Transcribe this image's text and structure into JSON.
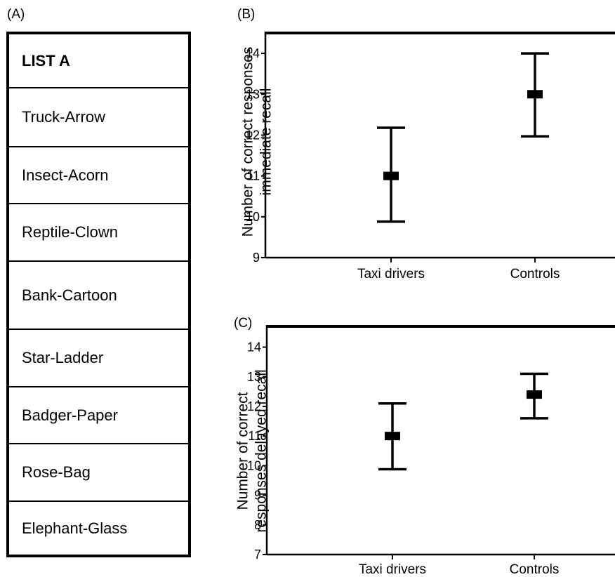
{
  "panels": {
    "a_label": "(A)",
    "b_label": "(B)",
    "c_label": "(C)"
  },
  "list": {
    "title": "LIST A",
    "items": [
      "Truck-Arrow",
      "Insect-Acorn",
      "Reptile-Clown",
      "Bank-Cartoon",
      "Star-Ladder",
      "Badger-Paper",
      "Rose-Bag",
      "Elephant-Glass"
    ]
  },
  "chart_data": [
    {
      "type": "scatter",
      "panel": "(B)",
      "categories": [
        "Taxi drivers",
        "Controls"
      ],
      "series": [
        {
          "mean": [
            11.0,
            13.0
          ],
          "lower": [
            9.88,
            11.97
          ],
          "upper": [
            12.18,
            14.0
          ]
        }
      ],
      "ylabel": [
        "Number of correct responses",
        "immediate recall"
      ],
      "ylim": [
        9,
        14.5
      ],
      "yticks": [
        9,
        10,
        11,
        12,
        13,
        14
      ],
      "grid": false
    },
    {
      "type": "scatter",
      "panel": "(C)",
      "categories": [
        "Taxi drivers",
        "Controls"
      ],
      "series": [
        {
          "mean": [
            11.0,
            12.4
          ],
          "lower": [
            9.88,
            11.6
          ],
          "upper": [
            12.1,
            13.1
          ]
        }
      ],
      "ylabel": [
        "Number of correct",
        "responses delayed recall"
      ],
      "ylim": [
        7,
        14.7
      ],
      "yticks": [
        7,
        8,
        9,
        10,
        11,
        12,
        13,
        14
      ],
      "grid": false
    }
  ]
}
